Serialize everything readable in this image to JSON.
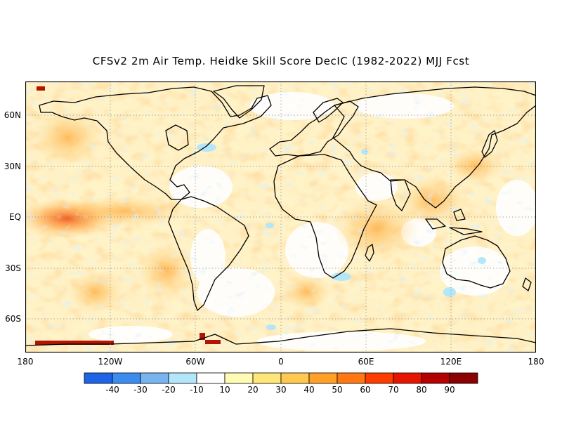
{
  "title": "CFSv2 2m Air Temp. Heidke Skill Score DecIC (1982-2022) MJJ Fcst",
  "lat_ticks": [
    "60N",
    "30N",
    "EQ",
    "30S",
    "60S"
  ],
  "lon_ticks": [
    "180",
    "120W",
    "60W",
    "0",
    "60E",
    "120E",
    "180"
  ],
  "colorbar": {
    "labels": [
      "-40",
      "-30",
      "-20",
      "-10",
      "10",
      "20",
      "30",
      "40",
      "50",
      "60",
      "70",
      "80",
      "90"
    ],
    "colors": [
      "#1e64e6",
      "#3c8cf0",
      "#78b4f0",
      "#b4e6fa",
      "#ffffff",
      "#fffab4",
      "#ffe678",
      "#ffc850",
      "#ffa028",
      "#ff7814",
      "#ff3c00",
      "#e61400",
      "#b40000",
      "#8c0000"
    ]
  }
}
